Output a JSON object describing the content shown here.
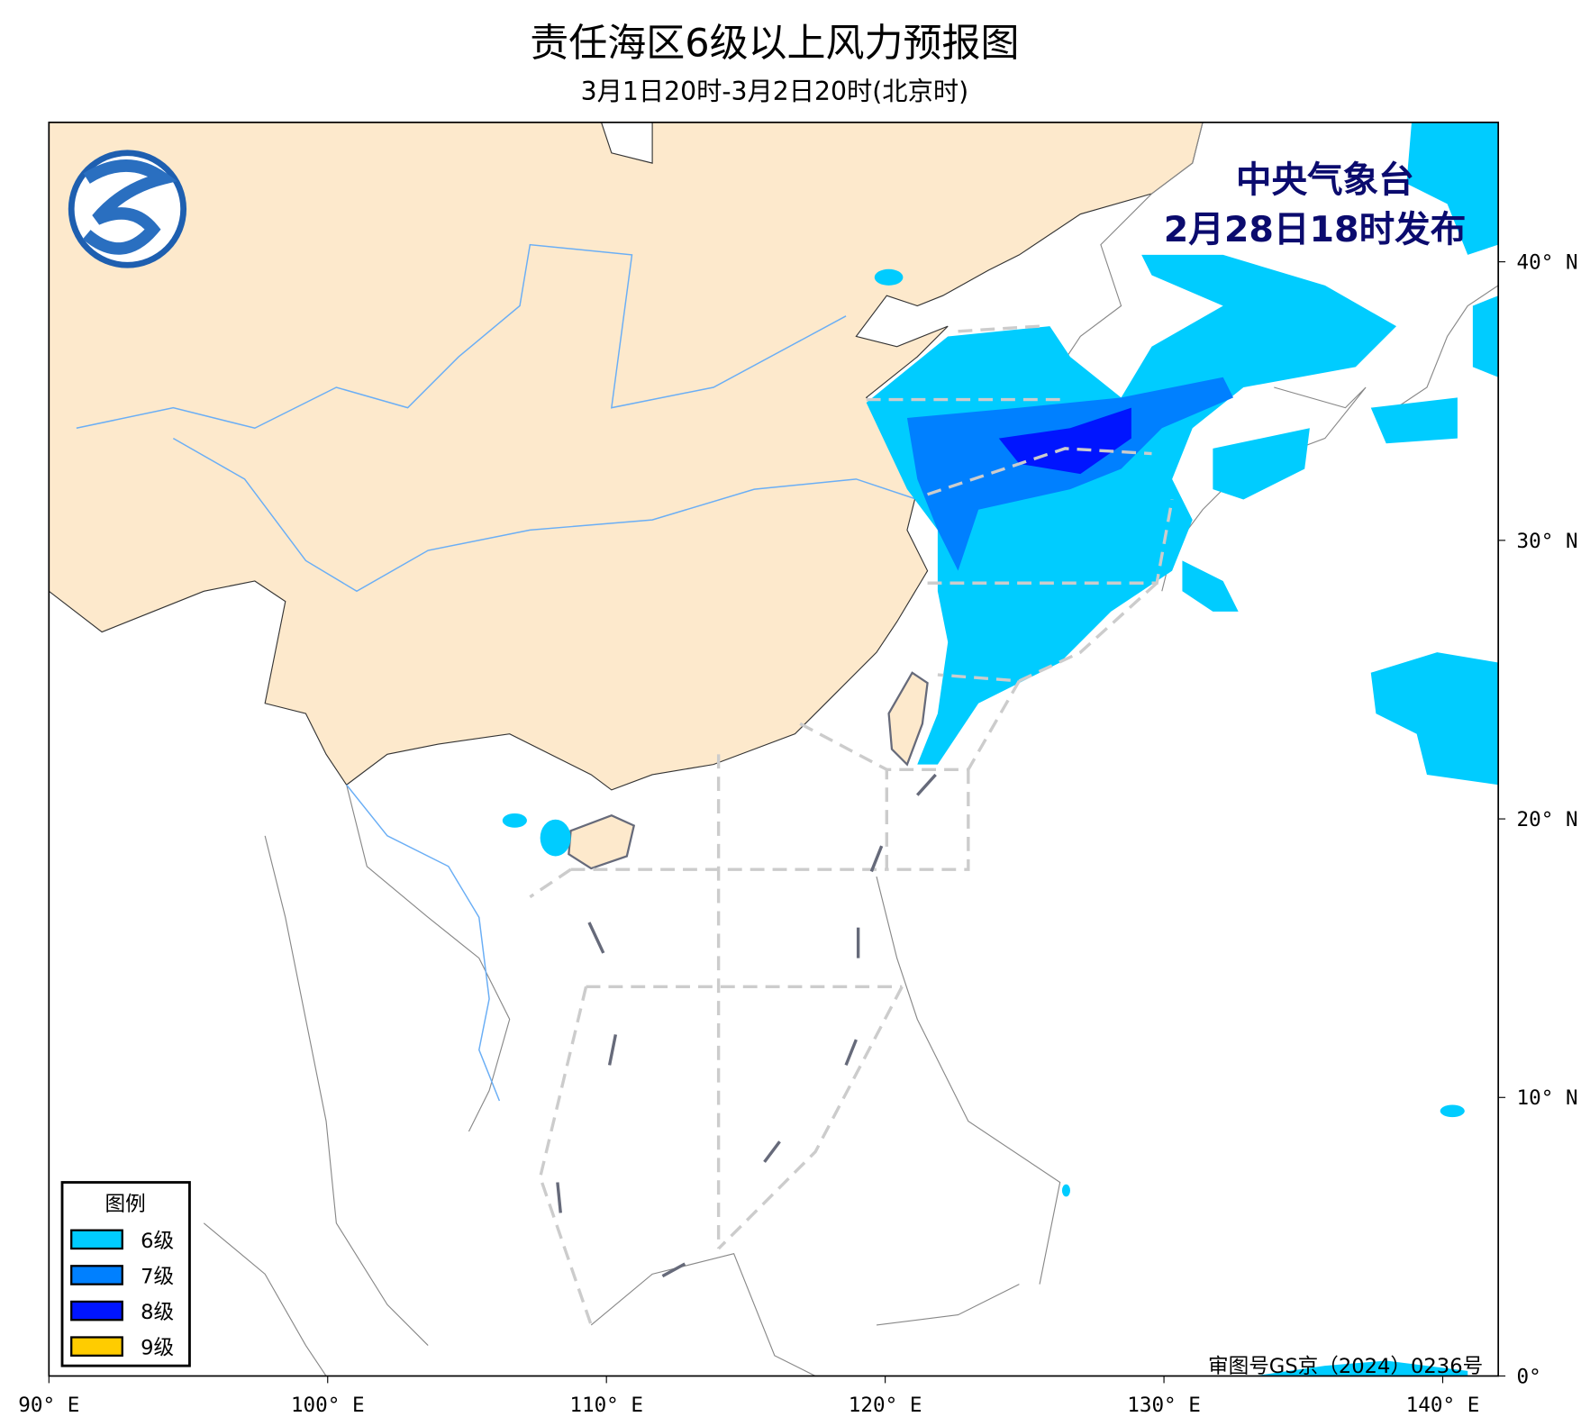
{
  "title": "责任海区6级以上风力预报图",
  "subtitle": "3月1日20时-3月2日20时(北京时)",
  "publisher": {
    "name": "中央气象台",
    "issued": "2月28日18时发布"
  },
  "approval": "审图号GS京（2024）0236号",
  "axes": {
    "x_ticks": [
      "90° E",
      "100° E",
      "110° E",
      "120° E",
      "130° E",
      "140° E"
    ],
    "y_ticks": [
      "0°",
      "10° N",
      "20° N",
      "30° N",
      "40° N"
    ],
    "lon_range": [
      90,
      142
    ],
    "lat_range": [
      0,
      45
    ]
  },
  "legend": {
    "title": "图例",
    "items": [
      {
        "label": "6级",
        "color": "#00ccff"
      },
      {
        "label": "7级",
        "color": "#0080ff"
      },
      {
        "label": "8级",
        "color": "#0015ff"
      },
      {
        "label": "9级",
        "color": "#ffcc00"
      }
    ]
  },
  "colors": {
    "land": "#fde9cc",
    "sea": "#ffffff",
    "river": "#6aaef5",
    "coast": "#666a7a",
    "boundary": "#cccccc"
  }
}
